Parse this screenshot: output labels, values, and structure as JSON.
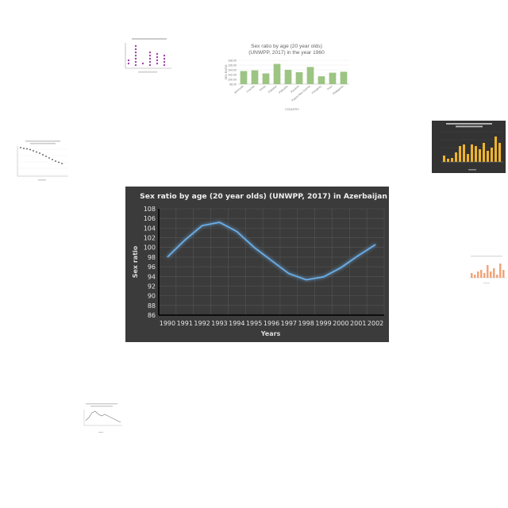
{
  "chart_data": [
    {
      "type": "line",
      "title": "Sex ratio by age (20 year olds) (UNWPP, 2017) in Azerbaijan",
      "xlabel": "Years",
      "ylabel": "Sex ratio",
      "x": [
        "1990",
        "1991",
        "1992",
        "1993",
        "1994",
        "1995",
        "1996",
        "1997",
        "1998",
        "1999",
        "2000",
        "2001",
        "2002"
      ],
      "series": [
        {
          "values": [
            98.0,
            101.5,
            104.5,
            105.2,
            103.3,
            100.0,
            97.3,
            94.6,
            93.3,
            93.9,
            95.8,
            98.3,
            100.6
          ]
        }
      ],
      "ylim": [
        86,
        108
      ],
      "yticks": [
        86,
        88,
        90,
        92,
        94,
        96,
        98,
        100,
        102,
        104,
        106,
        108
      ],
      "grid": true,
      "colors": {
        "background": "#3b3b3b",
        "line": "#6aaee8",
        "grid": "#555555",
        "text": "#e6e6e6"
      }
    },
    {
      "type": "bar",
      "title": "Sex ratio by age (20 year olds) (UNWPP, 2017) in the year 1960",
      "xlabel": "COUNTRY",
      "ylabel": "SEX RATIO",
      "categories": [
        "Bermuda",
        "Czechia",
        "Oman",
        "Pakistan",
        "Palestine",
        "Panama",
        "Papua New Guinea",
        "Paraguay",
        "Peru",
        "Philippines"
      ],
      "values": [
        103.5,
        103.8,
        102.5,
        106.5,
        104.0,
        103.0,
        105.2,
        101.3,
        102.8,
        103.2
      ],
      "ylim": [
        98,
        108
      ],
      "yticks": [
        98,
        100,
        102,
        104,
        106,
        108
      ],
      "colors": {
        "bar": "#9cc483"
      }
    }
  ]
}
